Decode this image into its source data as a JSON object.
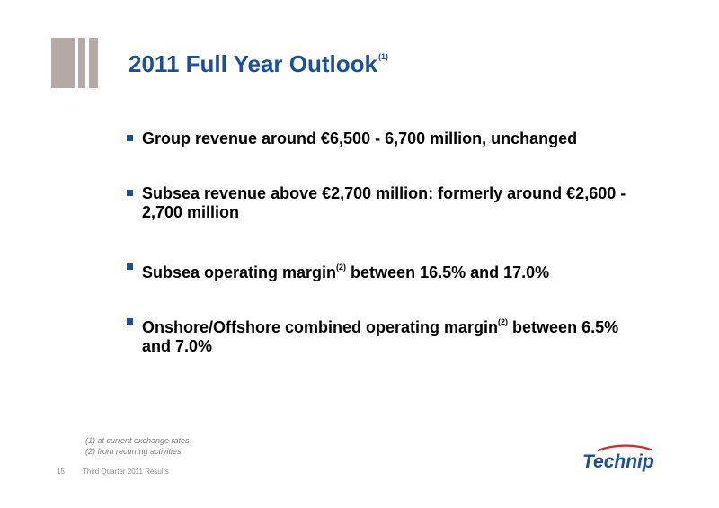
{
  "slide": {
    "title": "2011 Full Year Outlook",
    "title_note": "(1)",
    "bullets": [
      {
        "text": "Group revenue around €6,500 - 6,700 million, unchanged"
      },
      {
        "text": "Subsea revenue above €2,700 million: formerly around €2,600 - 2,700 million"
      },
      {
        "before": "Subsea operating margin",
        "sup": "(2)",
        "after": " between 16.5% and 17.0%"
      },
      {
        "before": "Onshore/Offshore combined operating margin",
        "sup": "(2)",
        "after": " between 6.5% and 7.0%"
      }
    ],
    "footnotes": [
      "(1) at current exchange rates",
      "(2) from recurring activities"
    ]
  },
  "footer": {
    "page_number": "15",
    "caption": "Third Quarter 2011 Results"
  },
  "logo": {
    "text": "Technip"
  },
  "colors": {
    "title": "#1a4f9c",
    "bars": "#b3aaa5",
    "logo_blue": "#1a4f9c",
    "logo_red": "#d62a2a"
  }
}
